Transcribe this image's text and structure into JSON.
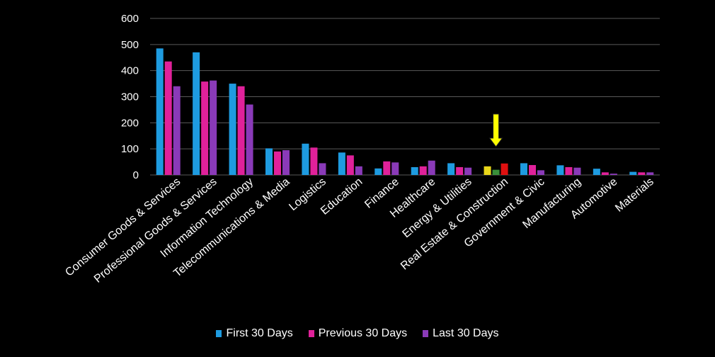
{
  "chart_data": {
    "type": "bar",
    "categories": [
      "Consumer Goods &  Services",
      "Professional Goods & Services",
      "Information Technology",
      "Telecommunications & Media",
      "Logistics",
      "Education",
      "Finance",
      "Healthcare",
      "Energy & Utilities",
      "Real Estate & Construction",
      "Government & Civic",
      "Manufacturing",
      "Automotive",
      "Materials"
    ],
    "series": [
      {
        "name": "First 30 Days",
        "color": "#1e9be0",
        "values": [
          485,
          470,
          350,
          102,
          120,
          86,
          25,
          30,
          45,
          33,
          45,
          37,
          24,
          12
        ]
      },
      {
        "name": "Previous 30 Days",
        "color": "#e0219a",
        "values": [
          435,
          358,
          340,
          90,
          105,
          75,
          52,
          33,
          30,
          20,
          38,
          30,
          10,
          10
        ]
      },
      {
        "name": "Last 30 Days",
        "color": "#8a3ab8",
        "values": [
          340,
          362,
          270,
          95,
          45,
          33,
          48,
          55,
          28,
          44,
          18,
          28,
          5,
          10
        ]
      }
    ],
    "highlight": {
      "category_index": 9,
      "colors": [
        "#e8d61a",
        "#3a8f3a",
        "#e01010"
      ],
      "arrow_color": "#ffff00"
    },
    "ylim": [
      0,
      600
    ],
    "yticks": [
      0,
      100,
      200,
      300,
      400,
      500,
      600
    ],
    "grid": true,
    "legend_position": "bottom"
  }
}
